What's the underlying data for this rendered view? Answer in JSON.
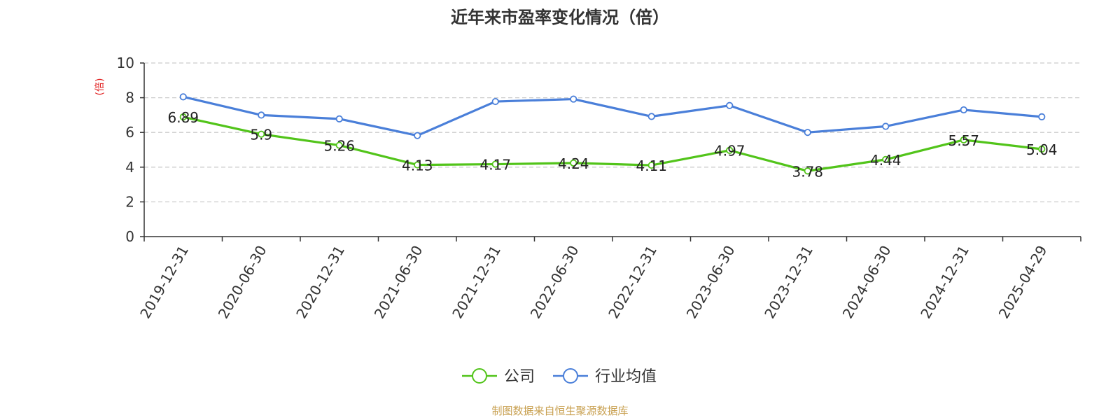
{
  "chart_data": {
    "type": "line",
    "title": "近年来市盈率变化情况（倍）",
    "ylabel": "(倍)",
    "xlabel": "",
    "ylim": [
      0,
      10
    ],
    "yticks": [
      0,
      2,
      4,
      6,
      8,
      10
    ],
    "grid": true,
    "legend_position": "bottom",
    "categories": [
      "2019-12-31",
      "2020-06-30",
      "2020-12-31",
      "2021-06-30",
      "2021-12-31",
      "2022-06-30",
      "2022-12-31",
      "2023-06-30",
      "2023-12-31",
      "2024-06-30",
      "2024-12-31",
      "2025-04-29"
    ],
    "series": [
      {
        "name": "公司",
        "color": "#52c41a",
        "show_labels": true,
        "values": [
          6.89,
          5.9,
          5.26,
          4.13,
          4.17,
          4.24,
          4.11,
          4.97,
          3.78,
          4.44,
          5.57,
          5.04
        ]
      },
      {
        "name": "行业均值",
        "color": "#4a7fd9",
        "show_labels": false,
        "values": [
          8.05,
          7.0,
          6.78,
          5.82,
          7.78,
          7.92,
          6.92,
          7.55,
          6.0,
          6.35,
          7.3,
          6.9
        ]
      }
    ],
    "source": "制图数据来自恒生聚源数据库",
    "colors": {
      "ylabel": "#e02020",
      "source": "#c8a050",
      "grid": "#cccccc",
      "axis": "#333333"
    }
  }
}
